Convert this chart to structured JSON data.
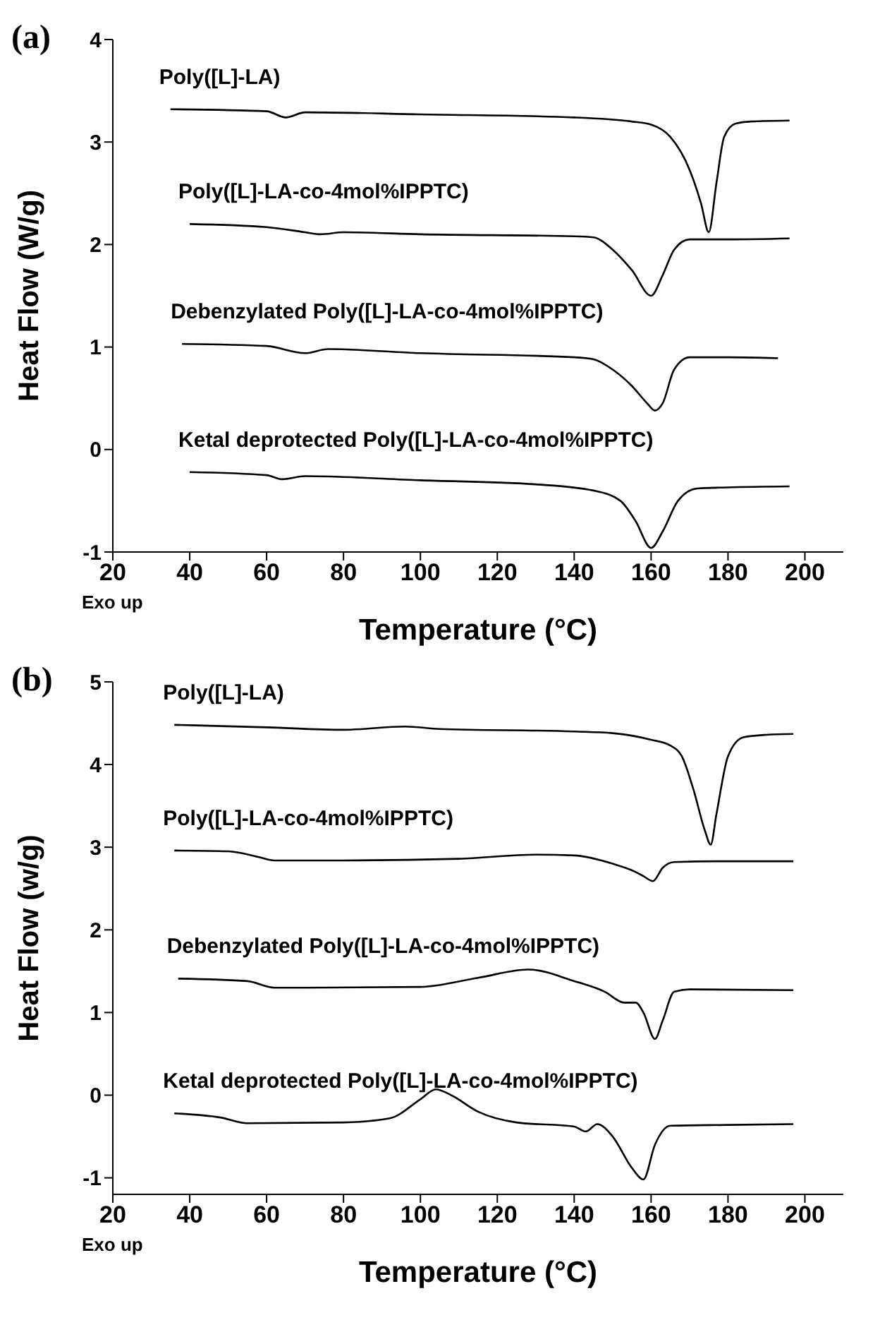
{
  "chart_data": [
    {
      "type": "line",
      "title": "(a)",
      "xlabel": "Temperature (°C)",
      "ylabel": "Heat Flow (W/g)",
      "annotations": [
        "Exo up"
      ],
      "xlim": [
        20,
        210
      ],
      "xticks": [
        20,
        40,
        60,
        80,
        100,
        120,
        140,
        160,
        180,
        200
      ],
      "ylim": [
        -1,
        4
      ],
      "yticks": [
        -1,
        0,
        1,
        2,
        3,
        4
      ],
      "grid": false,
      "legend": false,
      "marker": "none",
      "line_style": "solid",
      "series": [
        {
          "name": "Poly([L]-LA)",
          "color": "#000000",
          "x": [
            35,
            60,
            65,
            70,
            100,
            140,
            155,
            160,
            165,
            170,
            173,
            175,
            177,
            179,
            182,
            186,
            196
          ],
          "values": [
            3.32,
            3.3,
            3.24,
            3.29,
            3.27,
            3.24,
            3.2,
            3.17,
            3.05,
            2.73,
            2.4,
            2.12,
            2.6,
            3.05,
            3.18,
            3.2,
            3.21
          ]
        },
        {
          "name": "Poly([L]-LA-co-4mol%IPPTC)",
          "color": "#000000",
          "x": [
            40,
            60,
            70,
            74,
            80,
            100,
            140,
            145,
            150,
            155,
            160,
            163,
            166,
            170,
            180,
            196
          ],
          "values": [
            2.2,
            2.17,
            2.12,
            2.1,
            2.12,
            2.1,
            2.08,
            2.07,
            1.95,
            1.75,
            1.5,
            1.7,
            1.95,
            2.05,
            2.05,
            2.06
          ]
        },
        {
          "name": "Debenzylated Poly([L]-LA-co-4mol%IPPTC)",
          "color": "#000000",
          "x": [
            38,
            60,
            70,
            76,
            100,
            140,
            145,
            150,
            155,
            159,
            161,
            163,
            166,
            170,
            180,
            193
          ],
          "values": [
            1.03,
            1.01,
            0.94,
            0.98,
            0.94,
            0.9,
            0.88,
            0.78,
            0.62,
            0.45,
            0.38,
            0.45,
            0.78,
            0.9,
            0.9,
            0.89
          ]
        },
        {
          "name": "Ketal deprotected Poly([L]-LA-co-4mol%IPPTC)",
          "color": "#000000",
          "x": [
            40,
            60,
            64,
            70,
            100,
            130,
            145,
            152,
            156,
            160,
            163,
            167,
            172,
            180,
            196
          ],
          "values": [
            -0.22,
            -0.25,
            -0.29,
            -0.26,
            -0.3,
            -0.34,
            -0.4,
            -0.5,
            -0.7,
            -0.96,
            -0.8,
            -0.5,
            -0.38,
            -0.37,
            -0.36
          ]
        }
      ]
    },
    {
      "type": "line",
      "title": "(b)",
      "xlabel": "Temperature (°C)",
      "ylabel": "Heat Flow (w/g)",
      "annotations": [
        "Exo up"
      ],
      "xlim": [
        20,
        210
      ],
      "xticks": [
        20,
        40,
        60,
        80,
        100,
        120,
        140,
        160,
        180,
        200
      ],
      "ylim": [
        -1.2,
        5
      ],
      "yticks": [
        -1,
        0,
        1,
        2,
        3,
        4,
        5
      ],
      "grid": false,
      "legend": false,
      "marker": "none",
      "line_style": "solid",
      "series": [
        {
          "name": "Poly([L]-LA)",
          "color": "#000000",
          "x": [
            36,
            60,
            80,
            96,
            105,
            140,
            150,
            160,
            165,
            168,
            171,
            174,
            175.5,
            177,
            180,
            184,
            190,
            197
          ],
          "values": [
            4.48,
            4.45,
            4.42,
            4.46,
            4.43,
            4.4,
            4.38,
            4.3,
            4.23,
            4.1,
            3.7,
            3.2,
            3.03,
            3.4,
            4.1,
            4.33,
            4.36,
            4.37
          ]
        },
        {
          "name": "Poly([L]-LA-co-4mol%IPPTC)",
          "color": "#000000",
          "x": [
            36,
            50,
            58,
            62,
            80,
            110,
            130,
            140,
            150,
            156,
            158,
            160.5,
            163,
            166,
            180,
            197
          ],
          "values": [
            2.96,
            2.95,
            2.88,
            2.84,
            2.84,
            2.86,
            2.91,
            2.9,
            2.8,
            2.7,
            2.65,
            2.59,
            2.75,
            2.82,
            2.83,
            2.83
          ]
        },
        {
          "name": "Debenzylated Poly([L]-LA-co-4mol%IPPTC)",
          "color": "#000000",
          "x": [
            37,
            55,
            62,
            70,
            100,
            115,
            128,
            140,
            148,
            153,
            156,
            158,
            161,
            163,
            166,
            170,
            197
          ],
          "values": [
            1.41,
            1.38,
            1.3,
            1.3,
            1.31,
            1.42,
            1.52,
            1.38,
            1.25,
            1.12,
            1.12,
            1.0,
            0.68,
            0.9,
            1.25,
            1.28,
            1.27
          ]
        },
        {
          "name": "Ketal deprotected Poly([L]-LA-co-4mol%IPPTC)",
          "color": "#000000",
          "x": [
            36,
            48,
            55,
            80,
            92,
            100,
            104,
            108,
            115,
            125,
            140,
            143,
            146,
            150,
            155,
            158,
            161,
            165,
            180,
            197
          ],
          "values": [
            -0.22,
            -0.27,
            -0.34,
            -0.33,
            -0.28,
            -0.05,
            0.07,
            0.0,
            -0.2,
            -0.33,
            -0.38,
            -0.44,
            -0.35,
            -0.5,
            -0.88,
            -1.02,
            -0.6,
            -0.37,
            -0.36,
            -0.35
          ]
        }
      ]
    }
  ]
}
